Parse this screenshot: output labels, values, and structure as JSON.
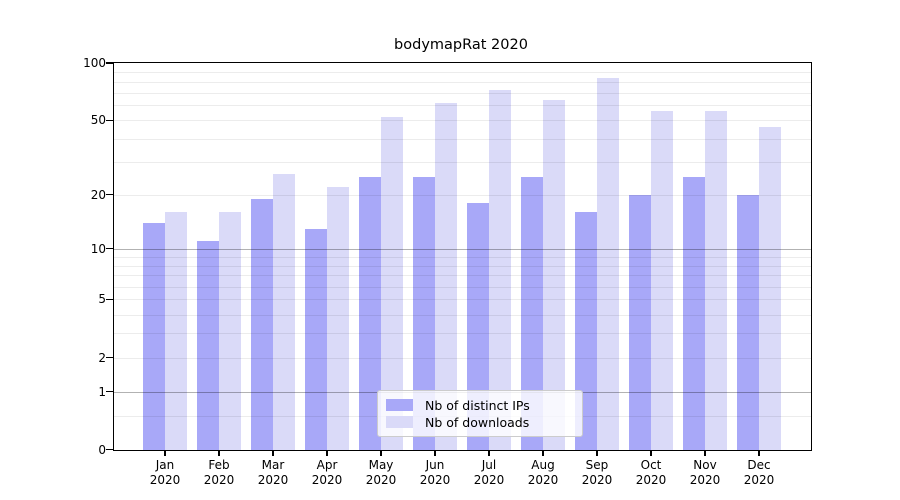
{
  "title": "bodymapRat 2020",
  "chart_data": {
    "type": "bar",
    "title": "bodymapRat 2020",
    "categories": [
      "Jan 2020",
      "Feb 2020",
      "Mar 2020",
      "Apr 2020",
      "May 2020",
      "Jun 2020",
      "Jul 2020",
      "Aug 2020",
      "Sep 2020",
      "Oct 2020",
      "Nov 2020",
      "Dec 2020"
    ],
    "x_tick_line1": [
      "Jan",
      "Feb",
      "Mar",
      "Apr",
      "May",
      "Jun",
      "Jul",
      "Aug",
      "Sep",
      "Oct",
      "Nov",
      "Dec"
    ],
    "x_tick_line2": "2020",
    "series": [
      {
        "name": "Nb of distinct IPs",
        "color": "#a8a8f8",
        "values": [
          14,
          11,
          19,
          13,
          25,
          25,
          18,
          25,
          16,
          20,
          25,
          20
        ]
      },
      {
        "name": "Nb of downloads",
        "color": "#dadaf8",
        "values": [
          16,
          16,
          26,
          22,
          52,
          62,
          72,
          64,
          83,
          56,
          56,
          46
        ]
      }
    ],
    "yscale": "log10(value+1)",
    "ylim": [
      0,
      100
    ],
    "yticks": [
      100,
      50,
      20,
      10,
      5,
      2,
      1,
      0
    ],
    "gridlines_major": [
      1,
      10
    ],
    "gridlines_minor": [
      0.5,
      2,
      3,
      4,
      5,
      6,
      7,
      8,
      9,
      20,
      30,
      40,
      50,
      60,
      70,
      80,
      90
    ],
    "grid": true,
    "legend_position": "lower center"
  }
}
